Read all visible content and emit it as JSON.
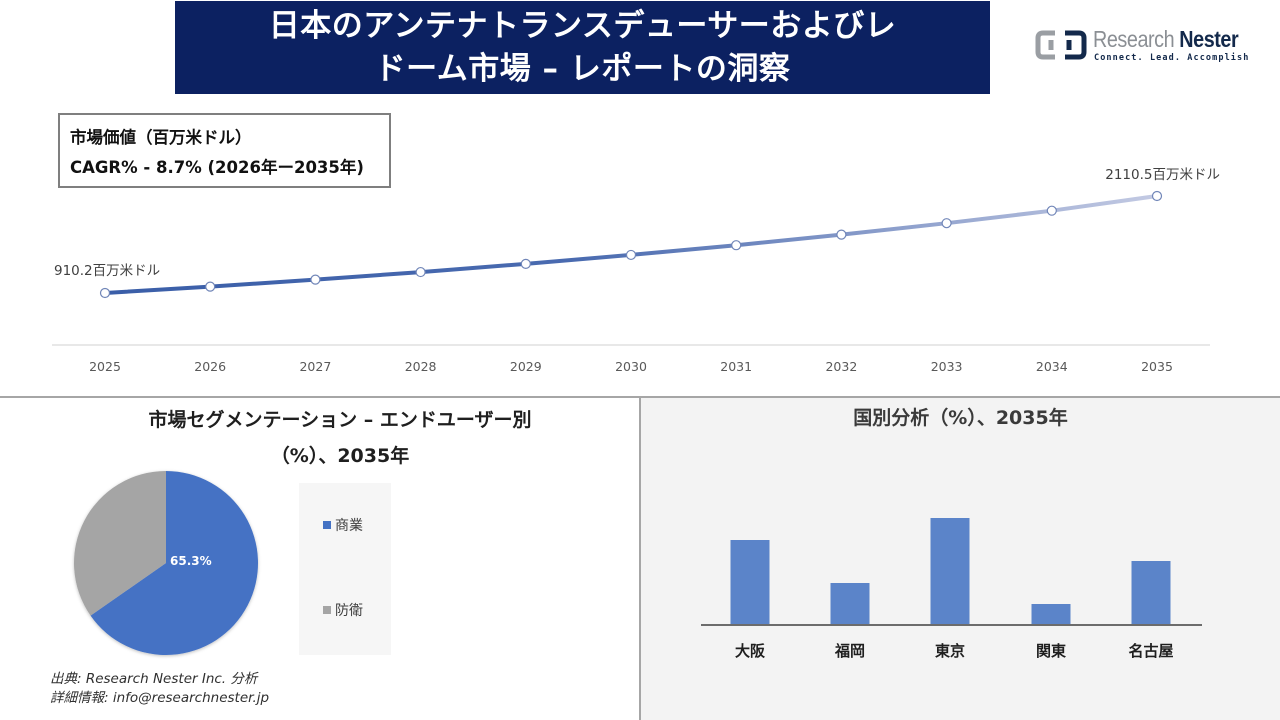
{
  "header": {
    "title": "日本のアンテナトランスデューサーおよびレドーム市場 – レポートの洞察",
    "title_line1": "日本のアンテナトランスデューサーおよびレ",
    "title_line2": "ドーム市場 – レポートの洞察",
    "banner_color": "#0c2161"
  },
  "logo": {
    "brand_part1": "Research",
    "brand_part2": "Nester",
    "tagline": "Connect. Lead. Accomplish"
  },
  "kpi": {
    "line1": "市場価値（百万米ドル）",
    "line2": "CAGR% - 8.7% (2026年ー2035年)"
  },
  "segmentation": {
    "title_line1": "市場セグメンテーション – エンドユーザー別",
    "title_line2": "（%）、2035年"
  },
  "geo": {
    "title": "国別分析（%）、2035年"
  },
  "source": {
    "line1": "出典: Research Nester Inc. 分析",
    "line2": "詳細情報: info@researchnester.jp"
  },
  "chart_data": [
    {
      "type": "line",
      "title": "市場価値（百万米ドル）",
      "subtitle": "CAGR% - 8.7% (2026年ー2035年)",
      "x": [
        "2025",
        "2026",
        "2027",
        "2028",
        "2029",
        "2030",
        "2031",
        "2032",
        "2033",
        "2034",
        "2035"
      ],
      "series": [
        {
          "name": "市場価値（百万米ドル）",
          "values": [
            910.2,
            989.4,
            1075.5,
            1169.1,
            1270.8,
            1381.4,
            1501.6,
            1632.2,
            1774.2,
            1928.6,
            2110.5
          ]
        }
      ],
      "annotations": [
        {
          "x": "2025",
          "label": "910.2百万米ドル"
        },
        {
          "x": "2035",
          "label": "2110.5百万米ドル"
        }
      ],
      "xlabel": "",
      "ylabel": "",
      "grid": false,
      "colors": {
        "start": "#3a5ea8",
        "end": "#c3cae3"
      }
    },
    {
      "type": "pie",
      "title": "市場セグメンテーション – エンドユーザー別（%）、2035年",
      "categories": [
        "商業",
        "防衛"
      ],
      "values": [
        65.3,
        34.7
      ],
      "data_labels": [
        "65.3%",
        ""
      ],
      "colors": [
        "#4472c4",
        "#a5a5a5"
      ],
      "legend_position": "right"
    },
    {
      "type": "bar",
      "title": "国別分析（%）、2035年",
      "categories": [
        "大阪",
        "福岡",
        "東京",
        "関東",
        "名古屋"
      ],
      "values": [
        84,
        41,
        106,
        20,
        63
      ],
      "value_note": "relative bar heights (px); no axis values shown",
      "color": "#5b84c9",
      "grid": false
    }
  ]
}
